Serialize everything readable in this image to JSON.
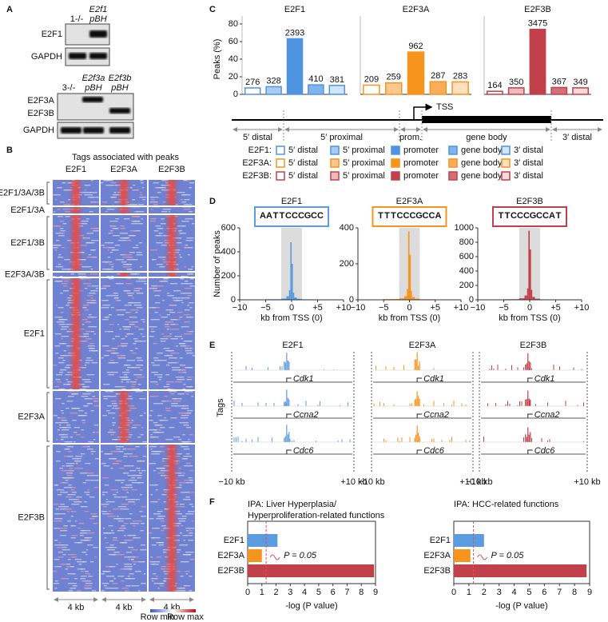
{
  "figure": {
    "panels": {
      "a": "A",
      "b": "B",
      "c": "C",
      "d": "D",
      "e": "E",
      "f": "F"
    },
    "a": {
      "blot1": {
        "lanes": [
          [
            "1-/-"
          ],
          [
            "E2f1",
            "pBH"
          ]
        ],
        "rows": [
          "E2F1",
          "GAPDH"
        ]
      },
      "blot2": {
        "lanes": [
          [
            "3-/-"
          ],
          [
            "E2f3a",
            "pBH"
          ],
          [
            "E2f3b",
            "pBH"
          ]
        ],
        "rows": [
          "E2F3A",
          "E2F3B",
          "GAPDH"
        ]
      }
    },
    "b": {
      "title": "Tags associated with peaks",
      "columns": [
        "E2F1",
        "E2F3A",
        "E2F3B"
      ],
      "groups": [
        "E2F1/3A/3B",
        "E2F1/3A",
        "E2F1/3B",
        "E2F3A/3B",
        "E2F1",
        "E2F3A",
        "E2F3B"
      ],
      "scale": [
        "4 kb",
        "4 kb",
        "4 kb"
      ],
      "legend": [
        "Row min",
        "Row max"
      ]
    },
    "c": {
      "ylabel": "Peaks (%)",
      "tss": "TSS",
      "regions": [
        "5′ distal",
        "5′ proximal",
        "prom.",
        "gene body",
        "3′ distal"
      ],
      "legend_rows": [
        "E2F1:",
        "E2F3A:",
        "E2F3B:"
      ]
    },
    "d": {
      "ylabel": "Number of peaks"
    },
    "e": {
      "titles": [
        "E2F1",
        "E2F3A",
        "E2F3B"
      ],
      "colors": [
        "#5b9be0",
        "#f7941d",
        "#c1404a"
      ],
      "ylabel": "Tags",
      "genes": [
        "Cdk1",
        "Ccna2",
        "Cdc6"
      ],
      "xlabels": [
        "−10 kb",
        "+10 kb"
      ]
    }
  },
  "chart_data": [
    {
      "type": "bar",
      "title": "E2F1",
      "categories": [
        "5′ distal",
        "5′ proximal",
        "promoter",
        "gene body",
        "3′ distal"
      ],
      "values": [
        7.3,
        8.7,
        63.2,
        10.8,
        10.1
      ],
      "counts": [
        276,
        328,
        2393,
        410,
        381
      ],
      "colors": [
        "#ffffff",
        "#a9cdf2",
        "#4f94e0",
        "#7fb3ea",
        "#d3e5f8"
      ],
      "edge": "#4f94e0",
      "ylim": [
        0,
        80
      ],
      "yticks": [
        0,
        20,
        40,
        60,
        80
      ]
    },
    {
      "type": "bar",
      "title": "E2F3A",
      "categories": [
        "5′ distal",
        "5′ proximal",
        "promoter",
        "gene body",
        "3′ distal"
      ],
      "values": [
        10.5,
        13.0,
        48.1,
        14.4,
        14.2
      ],
      "counts": [
        209,
        259,
        962,
        287,
        283
      ],
      "colors": [
        "#ffffff",
        "#fbc890",
        "#f7941d",
        "#f9ac5a",
        "#fde0c0"
      ],
      "edge": "#f7941d",
      "ylim": [
        0,
        80
      ]
    },
    {
      "type": "bar",
      "title": "E2F3B",
      "categories": [
        "5′ distal",
        "5′ proximal",
        "promoter",
        "gene body",
        "3′ distal"
      ],
      "values": [
        3.5,
        7.4,
        73.9,
        7.8,
        7.4
      ],
      "counts": [
        164,
        350,
        3475,
        367,
        349
      ],
      "colors": [
        "#ffffff",
        "#ecbcbc",
        "#c1404a",
        "#d27078",
        "#f4dada"
      ],
      "edge": "#c1404a",
      "ylim": [
        0,
        80
      ]
    },
    {
      "type": "histogram",
      "title": "E2F1",
      "motif": "AATTCCCGCC",
      "color": "#5b9be0",
      "bins": [
        -10,
        -5,
        -2,
        -1,
        -0.5,
        -0.25,
        0,
        0.25,
        0.5,
        1,
        2,
        5,
        10
      ],
      "values": [
        3,
        5,
        10,
        30,
        80,
        480,
        300,
        60,
        20,
        8,
        4,
        2
      ],
      "highlight": [
        -2,
        2
      ],
      "xlim": [
        -10,
        10
      ],
      "xticks": [
        {
          "value": -10,
          "label": "−10"
        },
        {
          "value": -5,
          "label": "−5"
        },
        0,
        {
          "value": 5,
          "label": "+5"
        },
        {
          "value": 10,
          "label": "+10"
        }
      ],
      "ylim": [
        0,
        600
      ],
      "yticks": [
        0,
        200,
        400,
        600
      ],
      "xlabel": "kb from TSS (0)"
    },
    {
      "type": "histogram",
      "title": "E2F3A",
      "motif": "TTTCCCGCCA",
      "color": "#f7941d",
      "bins": [
        -10,
        -5,
        -2,
        -1,
        -0.5,
        -0.25,
        0,
        0.25,
        0.5,
        1,
        2,
        5,
        10
      ],
      "values": [
        2,
        4,
        8,
        20,
        60,
        380,
        250,
        50,
        15,
        6,
        3,
        2
      ],
      "highlight": [
        -2,
        2
      ],
      "xlim": [
        -10,
        10
      ],
      "xticks": [
        {
          "value": -10,
          "label": "−10"
        },
        {
          "value": -5,
          "label": "−5"
        },
        0,
        {
          "value": 5,
          "label": "+5"
        },
        {
          "value": 10,
          "label": "+10"
        }
      ],
      "ylim": [
        0,
        400
      ],
      "yticks": [
        0,
        200,
        400
      ],
      "xlabel": "kb from TSS (0)"
    },
    {
      "type": "histogram",
      "title": "E2F3B",
      "motif": "TTCCCGCCAT",
      "color": "#c1404a",
      "bins": [
        -10,
        -5,
        -2,
        -1,
        -0.5,
        -0.25,
        0,
        0.25,
        0.5,
        1,
        2,
        5,
        10
      ],
      "values": [
        4,
        8,
        20,
        60,
        160,
        960,
        700,
        140,
        40,
        15,
        6,
        3
      ],
      "highlight": [
        -2,
        2
      ],
      "xlim": [
        -10,
        10
      ],
      "xticks": [
        {
          "value": -10,
          "label": "−10"
        },
        {
          "value": -5,
          "label": "−5"
        },
        0,
        {
          "value": 5,
          "label": "+5"
        },
        {
          "value": 10,
          "label": "+10"
        }
      ],
      "ylim": [
        0,
        1000
      ],
      "yticks": [
        0,
        200,
        400,
        600,
        800,
        1000
      ],
      "xlabel": "kb from TSS (0)"
    },
    {
      "type": "hbar",
      "title": [
        "IPA: Liver Hyperplasia/",
        "Hyperproliferation-related functions"
      ],
      "categories": [
        "E2F1",
        "E2F3A",
        "E2F3B"
      ],
      "values": [
        2.1,
        1.0,
        8.9
      ],
      "colors": [
        "#5b9be0",
        "#f7941d",
        "#c1404a"
      ],
      "xlim": [
        0,
        9
      ],
      "xticks": [
        0,
        1,
        2,
        3,
        4,
        5,
        6,
        7,
        8,
        9
      ],
      "threshold": 1.3,
      "threshold_label": "P = 0.05",
      "xlabel": "-log (P value)"
    },
    {
      "type": "hbar",
      "title": [
        "IPA: HCC-related functions"
      ],
      "categories": [
        "E2F1",
        "E2F3A",
        "E2F3B"
      ],
      "values": [
        2.0,
        1.1,
        8.8
      ],
      "colors": [
        "#5b9be0",
        "#f7941d",
        "#c1404a"
      ],
      "xlim": [
        0,
        9
      ],
      "xticks": [
        0,
        1,
        2,
        3,
        4,
        5,
        6,
        7,
        8,
        9
      ],
      "threshold": 1.3,
      "threshold_label": "P = 0.05",
      "xlabel": "-log (P value)"
    }
  ]
}
